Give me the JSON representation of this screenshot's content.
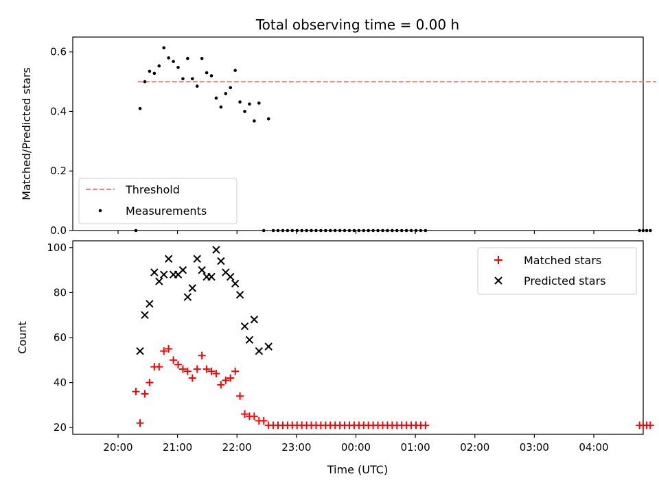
{
  "chart_data": {
    "type": "scatter",
    "title": "Total observing time = 0.00 h",
    "xlabel": "Time (UTC)",
    "x_tick_labels": [
      "20:00",
      "21:00",
      "22:00",
      "23:00",
      "00:00",
      "01:00",
      "02:00",
      "03:00",
      "04:00"
    ],
    "panels": [
      {
        "name": "ratio",
        "ylabel": "Matched/Predicted stars",
        "ylim": [
          0,
          0.65
        ],
        "yticks": [
          "0.0",
          "0.2",
          "0.4",
          "0.6"
        ],
        "legend_position": "lower-left",
        "series": [
          {
            "name": "Threshold",
            "kind": "dashed-line",
            "color": "#f08080",
            "x": [
              0.333,
              1.0,
              2.0,
              3.0,
              4.0,
              5.0,
              6.0,
              7.0,
              8.0,
              9.0,
              9.05
            ],
            "y": [
              0.5,
              0.5,
              0.5,
              0.5,
              0.5,
              0.5,
              0.5,
              0.5,
              0.5,
              0.5,
              0.5
            ]
          },
          {
            "name": "Measurements",
            "kind": "dot",
            "color": "#000000",
            "x": [
              0.3,
              0.37,
              0.45,
              0.53,
              0.61,
              0.69,
              0.77,
              0.85,
              0.93,
              1.01,
              1.09,
              1.17,
              1.25,
              1.33,
              1.41,
              1.49,
              1.57,
              1.65,
              1.73,
              1.81,
              1.89,
              1.97,
              2.05,
              2.13,
              2.21,
              2.29,
              2.37,
              2.45,
              2.53,
              2.61,
              2.69,
              2.77,
              2.85,
              2.93,
              3.01,
              3.09,
              3.17,
              3.25,
              3.33,
              3.41,
              3.49,
              3.57,
              3.65,
              3.73,
              3.81,
              3.89,
              3.97,
              4.05,
              4.13,
              4.21,
              4.29,
              4.37,
              4.45,
              4.53,
              4.61,
              4.69,
              4.77,
              4.85,
              4.93,
              5.01,
              5.09,
              5.17,
              8.77,
              8.83,
              8.89,
              8.95
            ],
            "y": [
              0.0,
              0.41,
              0.5,
              0.535,
              0.528,
              0.553,
              0.614,
              0.58,
              0.568,
              0.548,
              0.51,
              0.578,
              0.51,
              0.485,
              0.578,
              0.53,
              0.52,
              0.445,
              0.415,
              0.46,
              0.48,
              0.538,
              0.432,
              0.4,
              0.425,
              0.368,
              0.428,
              0.0,
              0.375,
              0.0,
              0.0,
              0.0,
              0.0,
              0.0,
              0.0,
              0.0,
              0.0,
              0.0,
              0.0,
              0.0,
              0.0,
              0.0,
              0.0,
              0.0,
              0.0,
              0.0,
              0.0,
              0.0,
              0.0,
              0.0,
              0.0,
              0.0,
              0.0,
              0.0,
              0.0,
              0.0,
              0.0,
              0.0,
              0.0,
              0.0,
              0.0,
              0.0,
              0.0,
              0.0,
              0.0,
              0.0
            ]
          }
        ]
      },
      {
        "name": "count",
        "ylabel": "Count",
        "ylim": [
          17,
          103
        ],
        "yticks": [
          "20",
          "40",
          "60",
          "80",
          "100"
        ],
        "legend_position": "top-right",
        "series": [
          {
            "name": "Matched stars",
            "kind": "plus",
            "color": "#ff0000",
            "x": [
              0.3,
              0.37,
              0.45,
              0.53,
              0.61,
              0.69,
              0.77,
              0.85,
              0.93,
              1.01,
              1.09,
              1.17,
              1.25,
              1.33,
              1.41,
              1.49,
              1.57,
              1.65,
              1.73,
              1.81,
              1.89,
              1.97,
              2.05,
              2.13,
              2.21,
              2.29,
              2.37,
              2.45,
              2.53,
              2.61,
              2.69,
              2.77,
              2.85,
              2.93,
              3.01,
              3.09,
              3.17,
              3.25,
              3.33,
              3.41,
              3.49,
              3.57,
              3.65,
              3.73,
              3.81,
              3.89,
              3.97,
              4.05,
              4.13,
              4.21,
              4.29,
              4.37,
              4.45,
              4.53,
              4.61,
              4.69,
              4.77,
              4.85,
              4.93,
              5.01,
              5.09,
              5.17,
              8.77,
              8.83,
              8.89,
              8.95
            ],
            "y": [
              36,
              22,
              35,
              40,
              47,
              47,
              54,
              55,
              50,
              48,
              46,
              45,
              42,
              46,
              52,
              46,
              45,
              44,
              39,
              41,
              42,
              45,
              34,
              26,
              25,
              25,
              23,
              23,
              21,
              21,
              21,
              21,
              21,
              21,
              21,
              21,
              21,
              21,
              21,
              21,
              21,
              21,
              21,
              21,
              21,
              21,
              21,
              21,
              21,
              21,
              21,
              21,
              21,
              21,
              21,
              21,
              21,
              21,
              21,
              21,
              21,
              21,
              21,
              21,
              21,
              21
            ]
          },
          {
            "name": "Predicted stars",
            "kind": "cross",
            "color": "#000000",
            "x": [
              0.37,
              0.45,
              0.53,
              0.61,
              0.69,
              0.77,
              0.85,
              0.93,
              1.01,
              1.09,
              1.17,
              1.25,
              1.33,
              1.41,
              1.49,
              1.57,
              1.65,
              1.73,
              1.81,
              1.89,
              1.97,
              2.05,
              2.13,
              2.21,
              2.29,
              2.37,
              2.53
            ],
            "y": [
              54,
              70,
              75,
              89,
              85,
              88,
              95,
              88,
              88,
              90,
              78,
              82,
              95,
              90,
              87,
              87,
              99,
              94,
              89,
              87,
              84,
              79,
              65,
              59,
              68,
              54,
              56
            ]
          }
        ]
      }
    ]
  }
}
